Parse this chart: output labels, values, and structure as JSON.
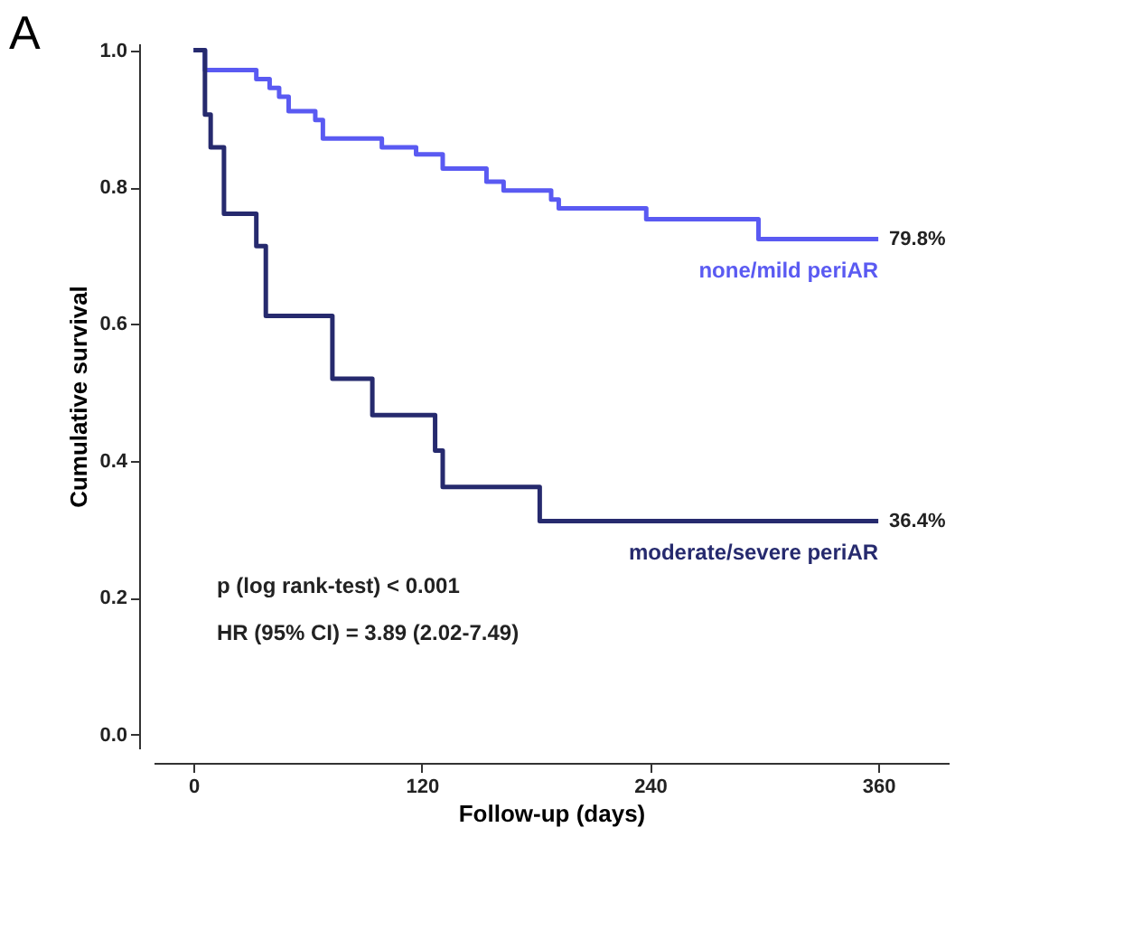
{
  "chart_data": {
    "type": "step",
    "title": "A",
    "xlabel": "Follow-up (days)",
    "ylabel": "Cumulative survival",
    "xlim": [
      -21,
      397
    ],
    "ylim": [
      -0.02,
      1.01
    ],
    "xticks": [
      0,
      120,
      240,
      360
    ],
    "yticks": [
      {
        "value": 0,
        "label": "0.0"
      },
      0.2,
      0.4,
      0.6,
      0.8,
      {
        "value": 1,
        "label": "1.0"
      }
    ],
    "grid": false,
    "marker": "none",
    "line_style": "solid",
    "series": [
      {
        "name": "none/mild periAR",
        "color": "#5a5af2",
        "x": [
          0,
          6,
          33,
          40,
          45,
          50,
          64,
          68,
          99,
          117,
          131,
          154,
          163,
          188,
          192,
          238,
          297,
          360
        ],
        "values": [
          1.0,
          0.971,
          0.958,
          0.945,
          0.932,
          0.911,
          0.898,
          0.871,
          0.858,
          0.848,
          0.827,
          0.808,
          0.795,
          0.782,
          0.769,
          0.753,
          0.724,
          0.724
        ]
      },
      {
        "name": "moderate/severe periAR",
        "color": "#262a6e",
        "x": [
          0,
          6,
          9,
          16,
          33,
          38,
          73,
          94,
          127,
          131,
          182,
          360
        ],
        "values": [
          1.0,
          0.906,
          0.858,
          0.761,
          0.714,
          0.612,
          0.52,
          0.467,
          0.415,
          0.362,
          0.312,
          0.312
        ]
      }
    ],
    "annotations": [
      {
        "text": "79.8%",
        "x": 360,
        "y": 0.724
      },
      {
        "text": "36.4%",
        "x": 360,
        "y": 0.312
      },
      "p (log rank-test) < 0.001",
      "HR (95% CI) = 3.89 (2.02-7.49)"
    ]
  }
}
